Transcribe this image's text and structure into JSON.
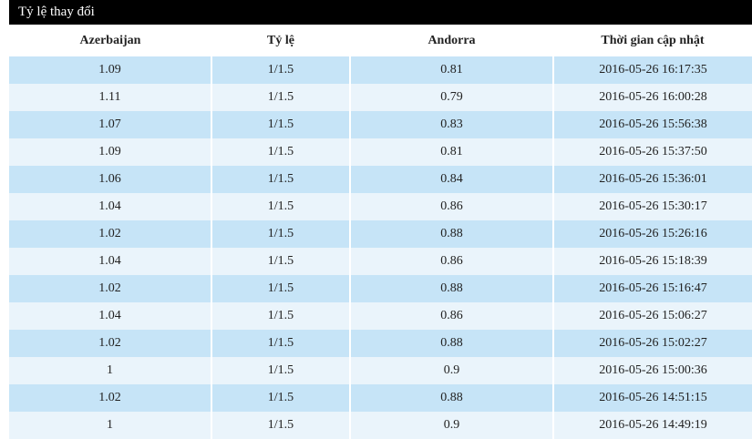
{
  "title": "Tỷ lệ thay đổi",
  "columns": [
    "Azerbaijan",
    "Tỷ lệ",
    "Andorra",
    "Thời gian cập nhật"
  ],
  "rows": [
    [
      "1.09",
      "1/1.5",
      "0.81",
      "2016-05-26 16:17:35"
    ],
    [
      "1.11",
      "1/1.5",
      "0.79",
      "2016-05-26 16:00:28"
    ],
    [
      "1.07",
      "1/1.5",
      "0.83",
      "2016-05-26 15:56:38"
    ],
    [
      "1.09",
      "1/1.5",
      "0.81",
      "2016-05-26 15:37:50"
    ],
    [
      "1.06",
      "1/1.5",
      "0.84",
      "2016-05-26 15:36:01"
    ],
    [
      "1.04",
      "1/1.5",
      "0.86",
      "2016-05-26 15:30:17"
    ],
    [
      "1.02",
      "1/1.5",
      "0.88",
      "2016-05-26 15:26:16"
    ],
    [
      "1.04",
      "1/1.5",
      "0.86",
      "2016-05-26 15:18:39"
    ],
    [
      "1.02",
      "1/1.5",
      "0.88",
      "2016-05-26 15:16:47"
    ],
    [
      "1.04",
      "1/1.5",
      "0.86",
      "2016-05-26 15:06:27"
    ],
    [
      "1.02",
      "1/1.5",
      "0.88",
      "2016-05-26 15:02:27"
    ],
    [
      "1",
      "1/1.5",
      "0.9",
      "2016-05-26 15:00:36"
    ],
    [
      "1.02",
      "1/1.5",
      "0.88",
      "2016-05-26 14:51:15"
    ],
    [
      "1",
      "1/1.5",
      "0.9",
      "2016-05-26 14:49:19"
    ]
  ]
}
